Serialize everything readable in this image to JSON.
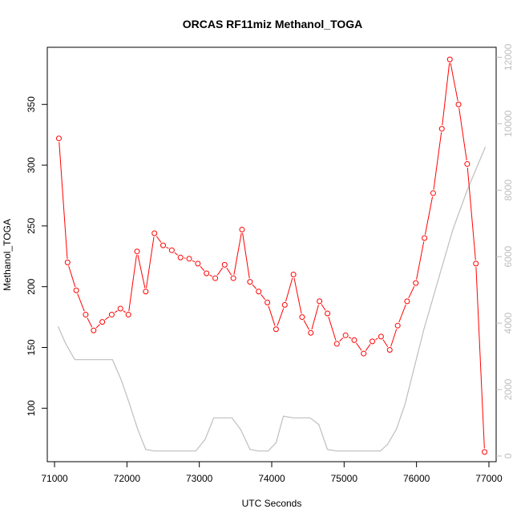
{
  "chart_data": {
    "type": "line",
    "title": "ORCAS RF11miz Methanol_TOGA",
    "xlabel": "UTC Seconds",
    "ylabel": "Methanol_TOGA",
    "xlim": [
      70900,
      77100
    ],
    "ylim": [
      56,
      397
    ],
    "y2lim": [
      -170,
      12300
    ],
    "xticks": [
      71000,
      72000,
      73000,
      74000,
      75000,
      76000,
      77000
    ],
    "yticks": [
      100,
      150,
      200,
      250,
      300,
      350
    ],
    "y2ticks": [
      0,
      2000,
      4000,
      6000,
      8000,
      10000,
      12000
    ],
    "colors": {
      "primary": "#ff0000",
      "secondary": "#bebebe"
    },
    "series": [
      {
        "axis": "left",
        "style": "line+points",
        "x": [
          71060,
          71180,
          71300,
          71430,
          71540,
          71660,
          71790,
          71910,
          72020,
          72140,
          72260,
          72380,
          72500,
          72620,
          72740,
          72860,
          72980,
          73100,
          73220,
          73350,
          73470,
          73590,
          73700,
          73820,
          73940,
          74060,
          74180,
          74300,
          74420,
          74540,
          74660,
          74770,
          74900,
          75020,
          75140,
          75270,
          75390,
          75510,
          75630,
          75740,
          75870,
          75990,
          76110,
          76230,
          76350,
          76460,
          76580,
          76700,
          76820,
          76940
        ],
        "y": [
          322,
          220,
          197,
          177,
          164,
          171,
          177,
          182,
          177,
          229,
          196,
          244,
          234,
          230,
          224,
          223,
          219,
          211,
          207,
          218,
          207,
          247,
          204,
          196,
          187,
          165,
          185,
          210,
          175,
          162,
          188,
          178,
          153,
          160,
          156,
          145,
          155,
          159,
          148,
          168,
          188,
          203,
          240,
          277,
          330,
          387,
          350,
          301,
          219,
          64
        ]
      },
      {
        "axis": "right",
        "style": "line",
        "x": [
          71050,
          71150,
          71280,
          71400,
          71550,
          71800,
          71920,
          72030,
          72150,
          72260,
          72380,
          72600,
          72800,
          72950,
          73080,
          73200,
          73320,
          73450,
          73570,
          73700,
          73820,
          73950,
          74060,
          74160,
          74300,
          74420,
          74530,
          74650,
          74770,
          74900,
          75050,
          75200,
          75350,
          75500,
          75600,
          75720,
          75840,
          75950,
          76100,
          76300,
          76500,
          76700,
          76950
        ],
        "y": [
          3900,
          3400,
          2900,
          2900,
          2900,
          2900,
          2300,
          1600,
          800,
          200,
          150,
          150,
          150,
          150,
          500,
          1150,
          1150,
          1150,
          800,
          200,
          150,
          150,
          400,
          1200,
          1150,
          1150,
          1150,
          950,
          200,
          150,
          150,
          150,
          150,
          150,
          350,
          800,
          1550,
          2500,
          3800,
          5300,
          6800,
          8000,
          9300
        ]
      }
    ]
  }
}
